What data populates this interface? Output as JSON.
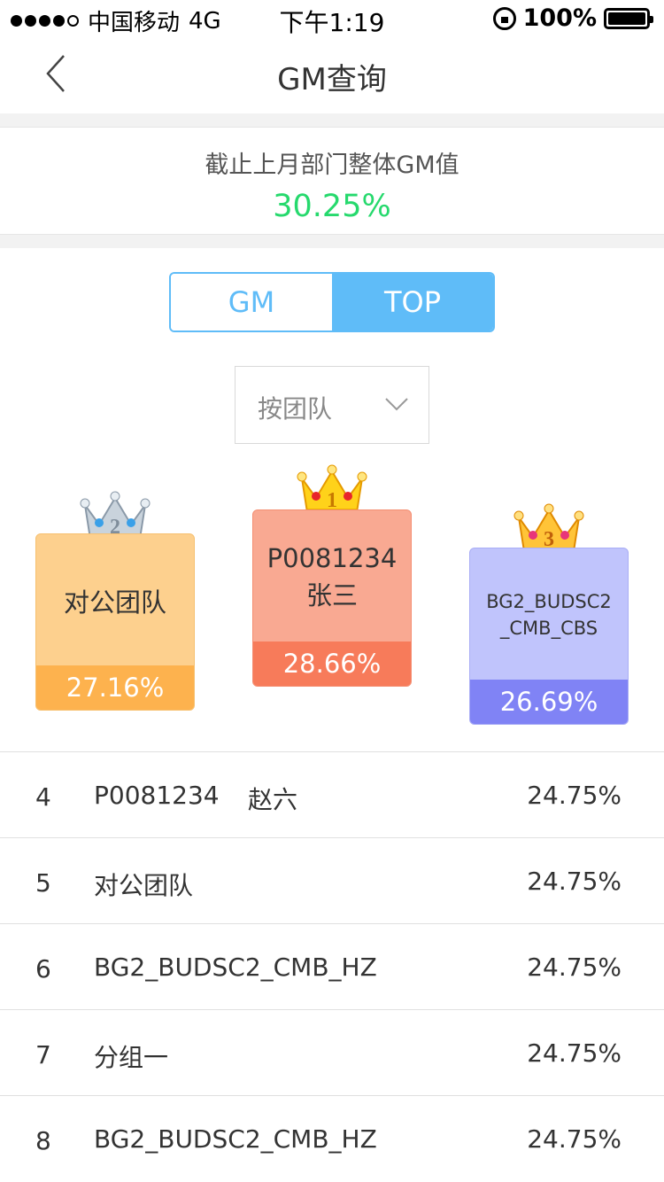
{
  "status_bar": {
    "carrier": "中国移动",
    "network": "4G",
    "time": "下午1:19",
    "battery": "100%"
  },
  "nav": {
    "title": "GM查询"
  },
  "summary": {
    "label": "截止上月部门整体GM值",
    "value": "30.25%",
    "value_color": "#26d96d"
  },
  "segment": {
    "tabs": [
      {
        "label": "GM",
        "active": false
      },
      {
        "label": "TOP",
        "active": true
      }
    ],
    "accent": "#5fbcf8"
  },
  "filter": {
    "selected": "按团队"
  },
  "podium": {
    "first": {
      "rank": "1",
      "line1": "P0081234",
      "line2": "张三",
      "value": "28.66%",
      "icon": "gold-crown-icon"
    },
    "second": {
      "rank": "2",
      "line1": "对公团队",
      "value": "27.16%",
      "icon": "silver-crown-icon"
    },
    "third": {
      "rank": "3",
      "line1": "BG2_BUDSC2",
      "line2": "_CMB_CBS",
      "value": "26.69%",
      "icon": "bronze-crown-icon"
    }
  },
  "ranking": [
    {
      "rank": "4",
      "name": "P0081234",
      "name2": "赵六",
      "value": "24.75%"
    },
    {
      "rank": "5",
      "name": "对公团队",
      "name2": "",
      "value": "24.75%"
    },
    {
      "rank": "6",
      "name": "BG2_BUDSC2_CMB_HZ",
      "name2": "",
      "value": "24.75%"
    },
    {
      "rank": "7",
      "name": "分组一",
      "name2": "",
      "value": "24.75%"
    },
    {
      "rank": "8",
      "name": "BG2_BUDSC2_CMB_HZ",
      "name2": "",
      "value": "24.75%"
    }
  ]
}
